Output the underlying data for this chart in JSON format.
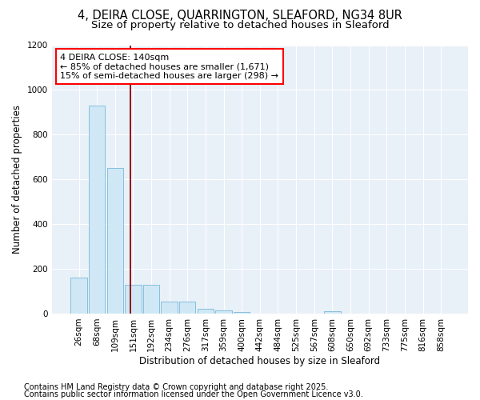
{
  "title1": "4, DEIRA CLOSE, QUARRINGTON, SLEAFORD, NG34 8UR",
  "title2": "Size of property relative to detached houses in Sleaford",
  "xlabel": "Distribution of detached houses by size in Sleaford",
  "ylabel": "Number of detached properties",
  "categories": [
    "26sqm",
    "68sqm",
    "109sqm",
    "151sqm",
    "192sqm",
    "234sqm",
    "276sqm",
    "317sqm",
    "359sqm",
    "400sqm",
    "442sqm",
    "484sqm",
    "525sqm",
    "567sqm",
    "608sqm",
    "650sqm",
    "692sqm",
    "733sqm",
    "775sqm",
    "816sqm",
    "858sqm"
  ],
  "values": [
    160,
    930,
    650,
    130,
    130,
    55,
    55,
    20,
    13,
    7,
    0,
    0,
    0,
    0,
    12,
    0,
    0,
    0,
    0,
    0,
    0
  ],
  "bar_color": "#d0e8f5",
  "bar_edge_color": "#7ab8d8",
  "vline_color": "#8b0000",
  "vline_x": 2.85,
  "annotation_text": "4 DEIRA CLOSE: 140sqm\n← 85% of detached houses are smaller (1,671)\n15% of semi-detached houses are larger (298) →",
  "annotation_box_color": "white",
  "annotation_box_edge_color": "red",
  "ylim": [
    0,
    1200
  ],
  "yticks": [
    0,
    200,
    400,
    600,
    800,
    1000,
    1200
  ],
  "background_color": "#e8f0f8",
  "grid_color": "#ffffff",
  "footer1": "Contains HM Land Registry data © Crown copyright and database right 2025.",
  "footer2": "Contains public sector information licensed under the Open Government Licence v3.0.",
  "title_fontsize": 10.5,
  "subtitle_fontsize": 9.5,
  "axis_label_fontsize": 8.5,
  "tick_fontsize": 7.5,
  "annotation_fontsize": 8,
  "footer_fontsize": 7
}
